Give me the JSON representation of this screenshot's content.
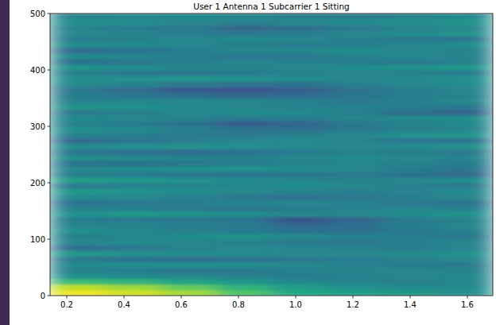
{
  "chart_data": {
    "type": "heatmap",
    "title": "User 1 Antenna 1 Subcarrier 1 Sitting",
    "xlim": [
      0.1417,
      1.689
    ],
    "ylim": [
      0,
      500
    ],
    "xticks": [
      {
        "value": 0.2,
        "label": "0.2"
      },
      {
        "value": 0.4,
        "label": "0.4"
      },
      {
        "value": 0.6,
        "label": "0.6"
      },
      {
        "value": 0.8,
        "label": "0.8"
      },
      {
        "value": 1.0,
        "label": "1.0"
      },
      {
        "value": 1.2,
        "label": "1.2"
      },
      {
        "value": 1.4,
        "label": "1.4"
      },
      {
        "value": 1.6,
        "label": "1.6"
      }
    ],
    "yticks": [
      0,
      100,
      200,
      300,
      400,
      500
    ],
    "color_range": [
      0,
      1
    ],
    "cells": [
      [
        0.97,
        0.93,
        0.86,
        0.72,
        0.6,
        0.55,
        0.52,
        0.5
      ],
      [
        0.9,
        0.85,
        0.76,
        0.64,
        0.55,
        0.5,
        0.48,
        0.47
      ],
      [
        0.68,
        0.64,
        0.58,
        0.52,
        0.47,
        0.45,
        0.44,
        0.45
      ],
      [
        0.5,
        0.48,
        0.46,
        0.44,
        0.42,
        0.43,
        0.45,
        0.47
      ],
      [
        0.44,
        0.42,
        0.4,
        0.41,
        0.43,
        0.45,
        0.46,
        0.44
      ],
      [
        0.47,
        0.49,
        0.5,
        0.48,
        0.46,
        0.44,
        0.42,
        0.41
      ],
      [
        0.4,
        0.38,
        0.36,
        0.37,
        0.4,
        0.42,
        0.44,
        0.46
      ],
      [
        0.52,
        0.5,
        0.48,
        0.47,
        0.46,
        0.45,
        0.47,
        0.49
      ],
      [
        0.36,
        0.4,
        0.44,
        0.46,
        0.45,
        0.43,
        0.42,
        0.44
      ],
      [
        0.46,
        0.47,
        0.45,
        0.43,
        0.41,
        0.4,
        0.43,
        0.45
      ],
      [
        0.43,
        0.45,
        0.48,
        0.5,
        0.47,
        0.44,
        0.42,
        0.4
      ],
      [
        0.49,
        0.47,
        0.44,
        0.42,
        0.38,
        0.37,
        0.4,
        0.43
      ],
      [
        0.45,
        0.44,
        0.43,
        0.41,
        0.34,
        0.36,
        0.42,
        0.46
      ],
      [
        0.42,
        0.41,
        0.4,
        0.38,
        0.27,
        0.33,
        0.41,
        0.44
      ],
      [
        0.5,
        0.52,
        0.5,
        0.48,
        0.45,
        0.46,
        0.48,
        0.5
      ],
      [
        0.44,
        0.43,
        0.41,
        0.4,
        0.42,
        0.44,
        0.45,
        0.43
      ],
      [
        0.38,
        0.4,
        0.42,
        0.44,
        0.45,
        0.43,
        0.4,
        0.38
      ],
      [
        0.47,
        0.45,
        0.43,
        0.4,
        0.37,
        0.39,
        0.42,
        0.45
      ],
      [
        0.52,
        0.5,
        0.48,
        0.46,
        0.44,
        0.42,
        0.44,
        0.47
      ],
      [
        0.41,
        0.43,
        0.45,
        0.47,
        0.48,
        0.46,
        0.43,
        0.41
      ],
      [
        0.55,
        0.53,
        0.5,
        0.47,
        0.45,
        0.44,
        0.46,
        0.48
      ],
      [
        0.43,
        0.42,
        0.4,
        0.38,
        0.39,
        0.41,
        0.38,
        0.35
      ],
      [
        0.46,
        0.47,
        0.49,
        0.5,
        0.48,
        0.46,
        0.42,
        0.39
      ],
      [
        0.39,
        0.38,
        0.4,
        0.42,
        0.44,
        0.45,
        0.44,
        0.42
      ],
      [
        0.48,
        0.46,
        0.44,
        0.43,
        0.45,
        0.47,
        0.46,
        0.44
      ],
      [
        0.4,
        0.37,
        0.35,
        0.38,
        0.42,
        0.44,
        0.43,
        0.41
      ],
      [
        0.47,
        0.49,
        0.5,
        0.48,
        0.46,
        0.45,
        0.47,
        0.5
      ],
      [
        0.35,
        0.38,
        0.42,
        0.45,
        0.47,
        0.44,
        0.4,
        0.38
      ],
      [
        0.44,
        0.42,
        0.4,
        0.41,
        0.43,
        0.46,
        0.49,
        0.51
      ],
      [
        0.49,
        0.47,
        0.43,
        0.38,
        0.36,
        0.4,
        0.43,
        0.45
      ],
      [
        0.43,
        0.42,
        0.38,
        0.3,
        0.34,
        0.4,
        0.44,
        0.47
      ],
      [
        0.47,
        0.46,
        0.44,
        0.41,
        0.42,
        0.45,
        0.47,
        0.48
      ],
      [
        0.41,
        0.43,
        0.46,
        0.48,
        0.47,
        0.43,
        0.36,
        0.33
      ],
      [
        0.5,
        0.49,
        0.47,
        0.45,
        0.44,
        0.44,
        0.42,
        0.4
      ],
      [
        0.44,
        0.45,
        0.46,
        0.45,
        0.43,
        0.41,
        0.43,
        0.46
      ],
      [
        0.42,
        0.4,
        0.36,
        0.33,
        0.35,
        0.39,
        0.42,
        0.44
      ],
      [
        0.4,
        0.35,
        0.28,
        0.26,
        0.3,
        0.37,
        0.42,
        0.45
      ],
      [
        0.46,
        0.44,
        0.4,
        0.37,
        0.38,
        0.42,
        0.45,
        0.47
      ],
      [
        0.49,
        0.5,
        0.51,
        0.5,
        0.48,
        0.46,
        0.47,
        0.49
      ],
      [
        0.43,
        0.41,
        0.4,
        0.42,
        0.44,
        0.45,
        0.44,
        0.42
      ],
      [
        0.5,
        0.48,
        0.45,
        0.44,
        0.46,
        0.48,
        0.5,
        0.52
      ],
      [
        0.38,
        0.4,
        0.43,
        0.45,
        0.44,
        0.42,
        0.41,
        0.43
      ],
      [
        0.47,
        0.45,
        0.42,
        0.4,
        0.41,
        0.44,
        0.46,
        0.45
      ],
      [
        0.35,
        0.38,
        0.42,
        0.45,
        0.47,
        0.48,
        0.46,
        0.44
      ],
      [
        0.48,
        0.47,
        0.45,
        0.43,
        0.42,
        0.43,
        0.45,
        0.48
      ],
      [
        0.42,
        0.44,
        0.46,
        0.47,
        0.45,
        0.43,
        0.41,
        0.4
      ],
      [
        0.46,
        0.44,
        0.42,
        0.4,
        0.42,
        0.45,
        0.48,
        0.5
      ],
      [
        0.44,
        0.42,
        0.4,
        0.34,
        0.36,
        0.41,
        0.44,
        0.46
      ],
      [
        0.49,
        0.48,
        0.46,
        0.44,
        0.45,
        0.47,
        0.49,
        0.51
      ],
      [
        0.45,
        0.46,
        0.47,
        0.45,
        0.43,
        0.42,
        0.44,
        0.47
      ]
    ]
  }
}
